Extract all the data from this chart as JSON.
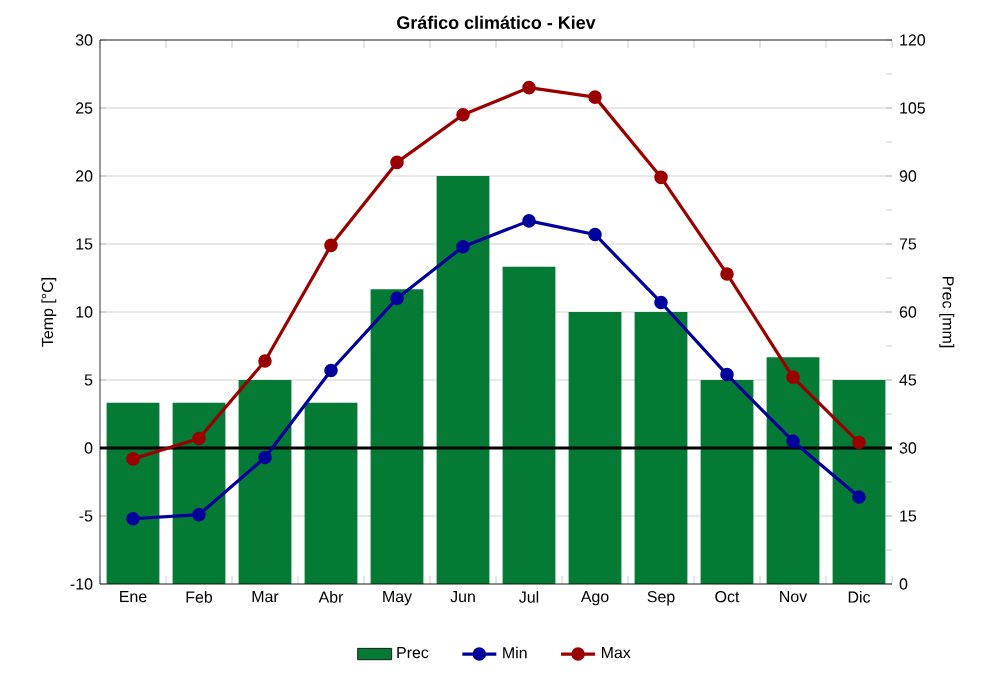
{
  "chart_data": {
    "type": "line",
    "title": "Gráfico climático - Kiev",
    "ylabel": "Temp [°C]",
    "y2label": "Prec [mm]",
    "categories": [
      "Ene",
      "Feb",
      "Mar",
      "Abr",
      "May",
      "Jun",
      "Jul",
      "Ago",
      "Sep",
      "Oct",
      "Nov",
      "Dic"
    ],
    "series": [
      {
        "name": "Prec",
        "type": "bar",
        "axis": "y2",
        "color": "#057a34",
        "values": [
          40,
          40,
          45,
          40,
          65,
          90,
          70,
          60,
          60,
          45,
          50,
          45
        ]
      },
      {
        "name": "Min",
        "color": "#00009c",
        "values": [
          -5.2,
          -4.9,
          -0.7,
          5.7,
          11,
          14.8,
          16.7,
          15.7,
          10.7,
          5.4,
          0.5,
          -3.6
        ]
      },
      {
        "name": "Max",
        "color": "#9b0000",
        "values": [
          -0.8,
          0.7,
          6.4,
          14.9,
          21,
          24.5,
          26.5,
          25.8,
          19.9,
          12.8,
          5.2,
          0.4
        ]
      }
    ],
    "ylim": [
      -10,
      30
    ],
    "yticks": [
      -10,
      -5,
      0,
      5,
      10,
      15,
      20,
      25,
      30
    ],
    "y2lim": [
      0,
      120
    ],
    "y2ticks": [
      0,
      15,
      30,
      45,
      60,
      75,
      90,
      105,
      120
    ],
    "ref_lines": [
      {
        "axis": "y",
        "value": 0,
        "color": "#000000"
      }
    ],
    "grid": true,
    "legend": "bottom",
    "marker": "circle",
    "line_style": "solid"
  }
}
